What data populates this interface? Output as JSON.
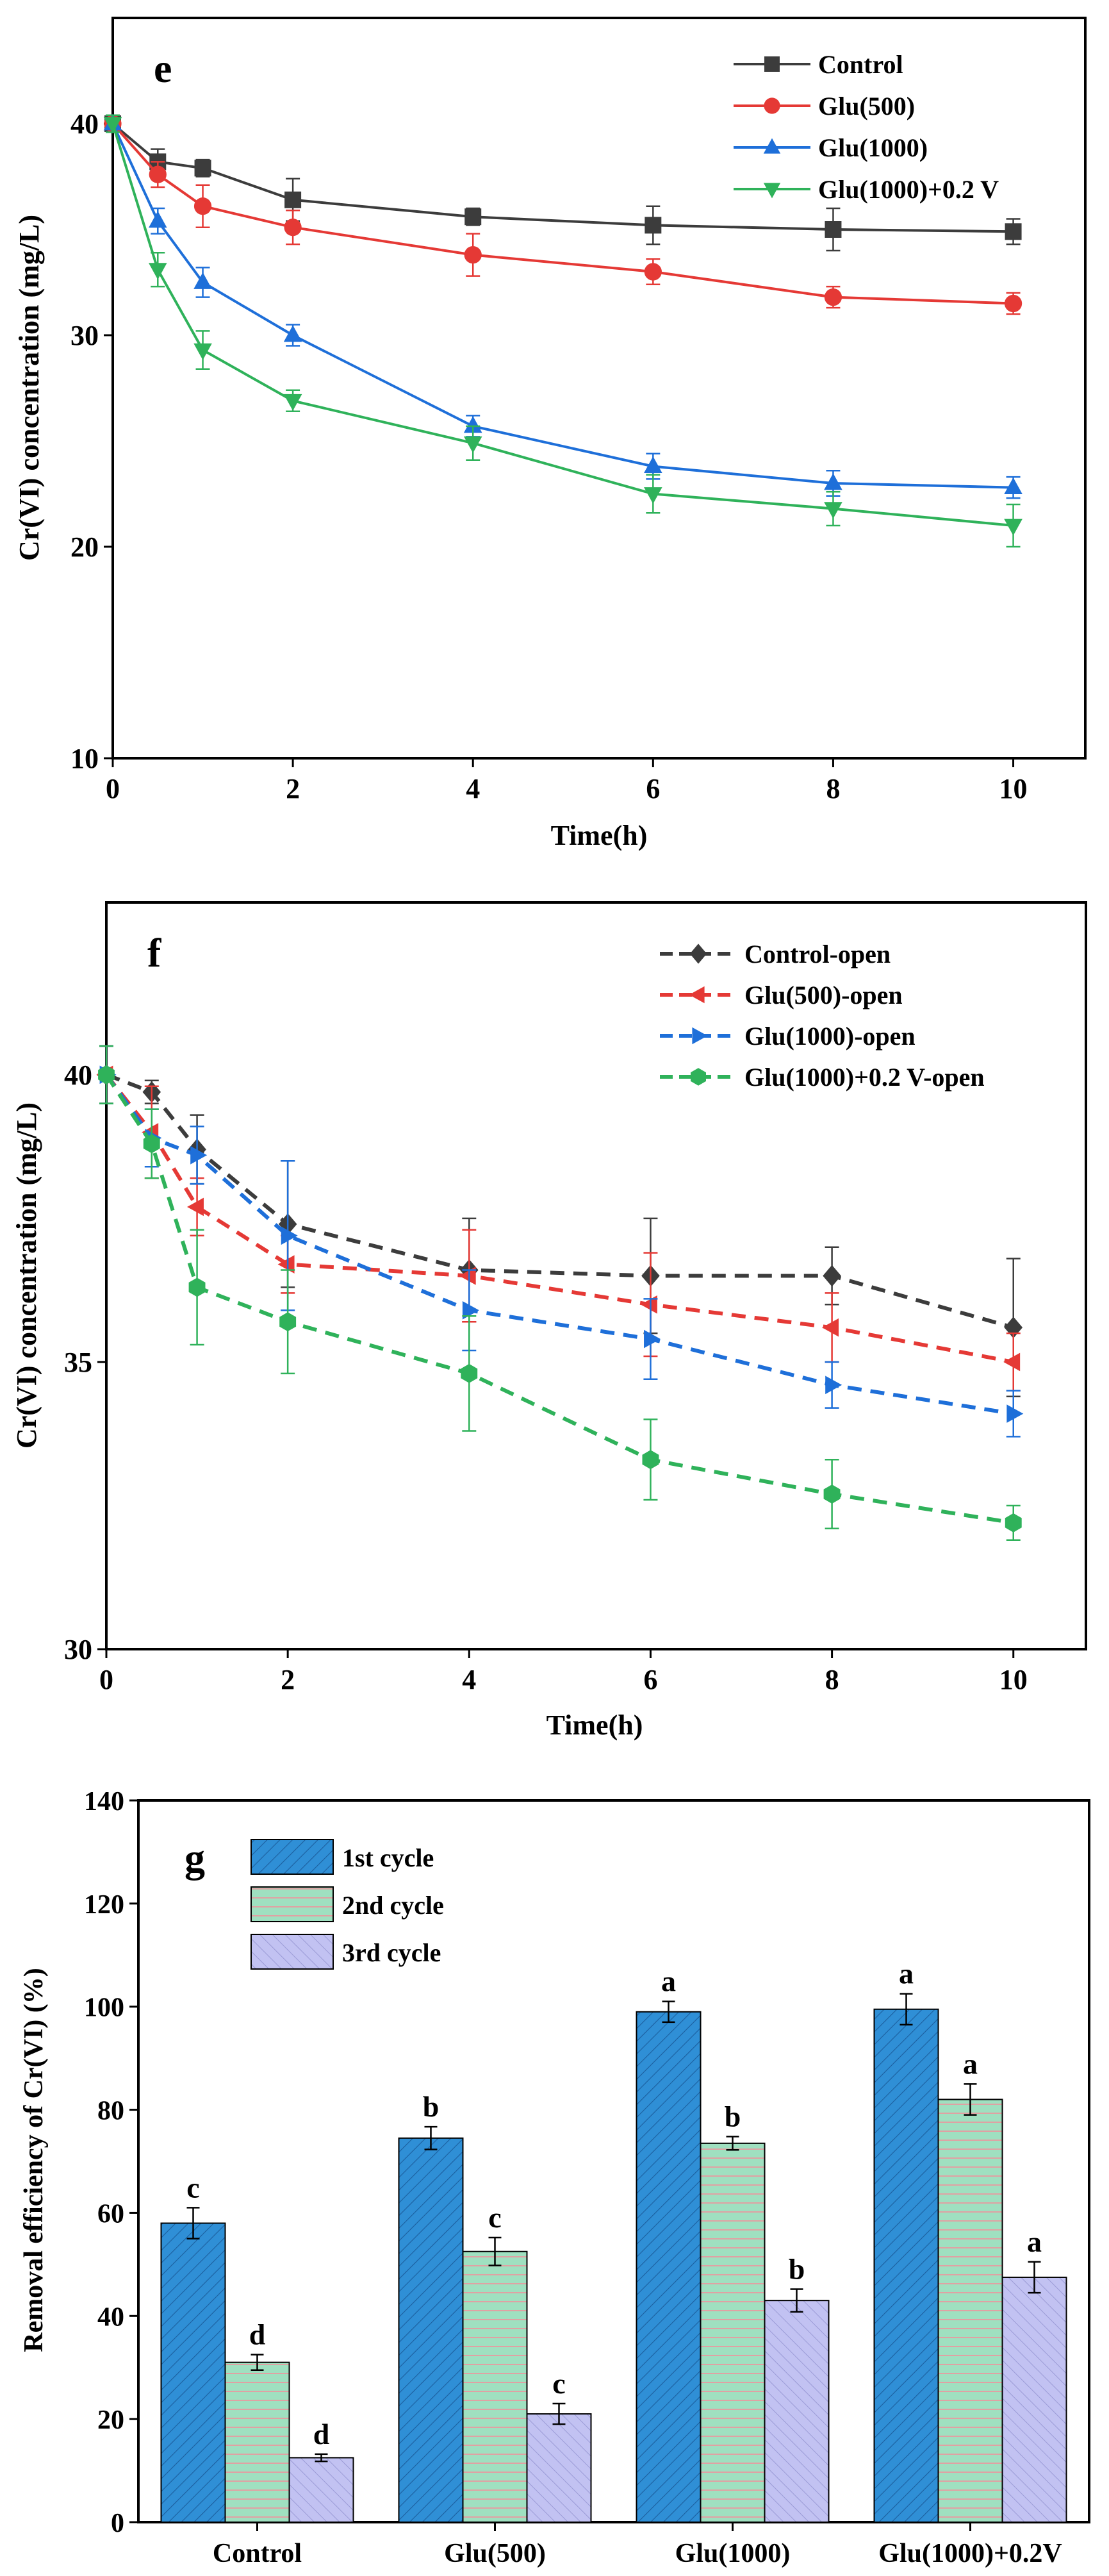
{
  "chart_data": [
    {
      "panel": "e",
      "type": "line",
      "xlabel": "Time(h)",
      "ylabel": "Cr(VI) concentration (mg/L)",
      "xlim": [
        0,
        10.8
      ],
      "ylim": [
        10,
        45
      ],
      "xticks": [
        0,
        2,
        4,
        6,
        8,
        10
      ],
      "yticks": [
        10,
        20,
        30,
        40
      ],
      "x": [
        0,
        0.5,
        1,
        2,
        4,
        6,
        8,
        10
      ],
      "legend_position": "top-right",
      "series": [
        {
          "name": "Control",
          "color": "#3c3c3c",
          "marker": "square",
          "dash": false,
          "values": [
            40.0,
            38.2,
            37.9,
            36.4,
            35.6,
            35.2,
            35.0,
            34.9
          ],
          "errors": [
            0.4,
            0.6,
            0.4,
            1.0,
            0.4,
            0.9,
            1.0,
            0.6
          ]
        },
        {
          "name": "Glu(500)",
          "color": "#e53935",
          "marker": "circle",
          "dash": false,
          "values": [
            40.0,
            37.6,
            36.1,
            35.1,
            33.8,
            33.0,
            31.8,
            31.5
          ],
          "errors": [
            0.4,
            0.6,
            1.0,
            0.8,
            1.0,
            0.6,
            0.5,
            0.5
          ]
        },
        {
          "name": "Glu(1000)",
          "color": "#1e6fd9",
          "marker": "triangle-up",
          "dash": false,
          "values": [
            40.0,
            35.4,
            32.5,
            30.0,
            25.7,
            23.8,
            23.0,
            22.8
          ],
          "errors": [
            0.4,
            0.6,
            0.7,
            0.5,
            0.5,
            0.6,
            0.6,
            0.5
          ]
        },
        {
          "name": "Glu(1000)+0.2 V",
          "color": "#2fb25a",
          "marker": "triangle-down",
          "dash": false,
          "values": [
            40.0,
            33.1,
            29.3,
            26.9,
            24.9,
            22.5,
            21.8,
            21.0
          ],
          "errors": [
            0.4,
            0.8,
            0.9,
            0.5,
            0.8,
            0.9,
            0.8,
            1.0
          ]
        }
      ]
    },
    {
      "panel": "f",
      "type": "line",
      "xlabel": "Time(h)",
      "ylabel": "Cr(VI) concentration (mg/L)",
      "xlim": [
        0,
        10.8
      ],
      "ylim": [
        30,
        43
      ],
      "xticks": [
        0,
        2,
        4,
        6,
        8,
        10
      ],
      "yticks": [
        30,
        35,
        40
      ],
      "x": [
        0,
        0.5,
        1,
        2,
        4,
        6,
        8,
        10
      ],
      "legend_position": "top-right",
      "series": [
        {
          "name": "Control-open",
          "color": "#3c3c3c",
          "marker": "diamond",
          "dash": true,
          "values": [
            40.0,
            39.7,
            38.7,
            37.4,
            36.6,
            36.5,
            36.5,
            35.6
          ],
          "errors": [
            0.5,
            0.2,
            0.6,
            1.1,
            0.9,
            1.0,
            0.5,
            1.2
          ]
        },
        {
          "name": "Glu(500)-open",
          "color": "#e53935",
          "marker": "triangle-left",
          "dash": true,
          "values": [
            40.0,
            39.0,
            37.7,
            36.7,
            36.5,
            36.0,
            35.6,
            35.0
          ],
          "errors": [
            0.5,
            0.8,
            0.5,
            0.5,
            0.8,
            0.9,
            0.6,
            0.5
          ]
        },
        {
          "name": "Glu(1000)-open",
          "color": "#1e6fd9",
          "marker": "triangle-right",
          "dash": true,
          "values": [
            40.0,
            38.9,
            38.6,
            37.2,
            35.9,
            35.4,
            34.6,
            34.1
          ],
          "errors": [
            0.5,
            0.5,
            0.5,
            1.3,
            0.7,
            0.7,
            0.4,
            0.4
          ]
        },
        {
          "name": "Glu(1000)+0.2 V-open",
          "color": "#2fb25a",
          "marker": "hexagon",
          "dash": true,
          "values": [
            40.0,
            38.8,
            36.3,
            35.7,
            34.8,
            33.3,
            32.7,
            32.2
          ],
          "errors": [
            0.5,
            0.6,
            1.0,
            0.9,
            1.0,
            0.7,
            0.6,
            0.3
          ]
        }
      ]
    },
    {
      "panel": "g",
      "type": "bar",
      "xlabel": "",
      "ylabel": "Removal efficiency of Cr(VI) (%)",
      "ylim": [
        0,
        140
      ],
      "yticks": [
        0,
        20,
        40,
        60,
        80,
        100,
        120,
        140
      ],
      "categories": [
        "Control",
        "Glu(500)",
        "Glu(1000)",
        "Glu(1000)+0.2V"
      ],
      "legend_position": "top-left",
      "series": [
        {
          "name": "1st cycle",
          "color": "#2f8fd6",
          "hatch": "diag",
          "values": [
            58,
            74.5,
            99,
            99.5
          ],
          "errors": [
            3,
            2.2,
            2,
            3
          ],
          "labels": [
            "c",
            "b",
            "a",
            "a"
          ]
        },
        {
          "name": "2nd cycle",
          "color": "#9fe0c0",
          "hatch": "horiz",
          "values": [
            31,
            52.5,
            73.5,
            82
          ],
          "errors": [
            1.5,
            2.7,
            1.3,
            3
          ],
          "labels": [
            "d",
            "c",
            "b",
            "a"
          ]
        },
        {
          "name": "3rd cycle",
          "color": "#c2c2f2",
          "hatch": "diag-rev",
          "values": [
            12.5,
            21,
            43,
            47.5
          ],
          "errors": [
            0.7,
            2,
            2.2,
            3
          ],
          "labels": [
            "d",
            "c",
            "b",
            "a"
          ]
        }
      ]
    }
  ]
}
